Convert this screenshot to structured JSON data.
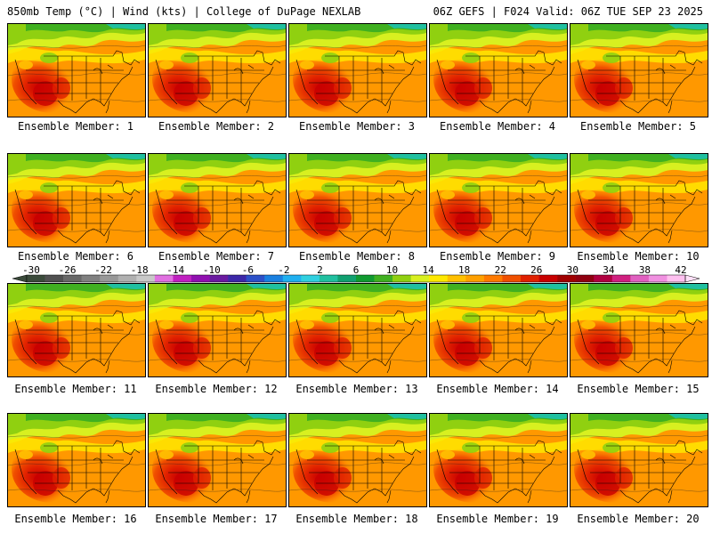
{
  "header": {
    "left": "850mb Temp (°C) | Wind (kts) | College of DuPage NEXLAB",
    "right": "06Z GEFS | F024 Valid: 06Z TUE SEP 23 2025"
  },
  "panels": [
    {
      "label": "Ensemble Member: 1"
    },
    {
      "label": "Ensemble Member: 2"
    },
    {
      "label": "Ensemble Member: 3"
    },
    {
      "label": "Ensemble Member: 4"
    },
    {
      "label": "Ensemble Member: 5"
    },
    {
      "label": "Ensemble Member: 6"
    },
    {
      "label": "Ensemble Member: 7"
    },
    {
      "label": "Ensemble Member: 8"
    },
    {
      "label": "Ensemble Member: 9"
    },
    {
      "label": "Ensemble Member: 10"
    },
    {
      "label": "Ensemble Member: 11"
    },
    {
      "label": "Ensemble Member: 12"
    },
    {
      "label": "Ensemble Member: 13"
    },
    {
      "label": "Ensemble Member: 14"
    },
    {
      "label": "Ensemble Member: 15"
    },
    {
      "label": "Ensemble Member: 16"
    },
    {
      "label": "Ensemble Member: 17"
    },
    {
      "label": "Ensemble Member: 18"
    },
    {
      "label": "Ensemble Member: 19"
    },
    {
      "label": "Ensemble Member: 20"
    }
  ],
  "colorbar": {
    "ticks": [
      "-30",
      "-26",
      "-22",
      "-18",
      "-14",
      "-10",
      "-6",
      "-2",
      "2",
      "6",
      "10",
      "14",
      "18",
      "22",
      "26",
      "30",
      "34",
      "38",
      "42"
    ],
    "colors": [
      "#3a4a3a",
      "#505050",
      "#686868",
      "#808080",
      "#989898",
      "#b0b0b0",
      "#c8c8c8",
      "#e070e0",
      "#c020c0",
      "#9010b0",
      "#6a1aa0",
      "#3c28a8",
      "#2c50c8",
      "#1a80e0",
      "#20b0f0",
      "#30d0e0",
      "#20c0a0",
      "#10a070",
      "#109a30",
      "#40b020",
      "#90d010",
      "#d8f020",
      "#ffe800",
      "#ffc000",
      "#ffa000",
      "#ff7a00",
      "#f05000",
      "#e02000",
      "#c80000",
      "#a00000",
      "#900010",
      "#b00040",
      "#d02080",
      "#e060c0",
      "#f090e0",
      "#ffc0f0"
    ]
  }
}
